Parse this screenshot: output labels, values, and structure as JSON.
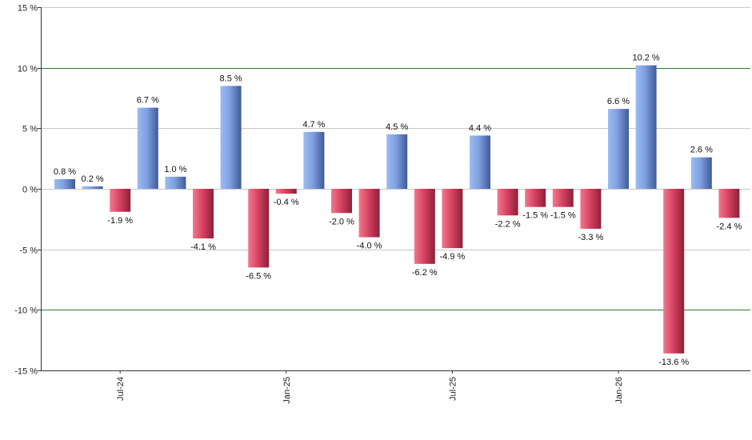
{
  "chart_data": {
    "type": "bar",
    "title": "",
    "xlabel": "",
    "ylabel": "",
    "ylim": [
      -15,
      15
    ],
    "yticks": [
      -15,
      -10,
      -5,
      0,
      5,
      10,
      15
    ],
    "ytick_labels": [
      "-15 %",
      "-10 %",
      "-5 %",
      "0 %",
      "5 %",
      "10 %",
      "15 %"
    ],
    "highlight_lines": [
      10,
      -10
    ],
    "grid": true,
    "legend": "none",
    "colors": {
      "positive": "#6f93d8",
      "negative": "#d23a5a",
      "highlight": "#2e7d32",
      "grid": "#c8c8c8"
    },
    "x_tick_labels": [
      {
        "label": "Jul-24",
        "index": 2
      },
      {
        "label": "Jan-25",
        "index": 8
      },
      {
        "label": "Jul-25",
        "index": 14
      },
      {
        "label": "Jan-26",
        "index": 20
      }
    ],
    "values": [
      0.8,
      0.2,
      -1.9,
      6.7,
      1.0,
      -4.1,
      8.5,
      -6.5,
      -0.4,
      4.7,
      -2.0,
      -4.0,
      4.5,
      -6.2,
      -4.9,
      4.4,
      -2.2,
      -1.5,
      -1.5,
      -3.3,
      6.6,
      10.2,
      -13.6,
      2.6,
      -2.4
    ],
    "data_labels": [
      "0.8 %",
      "0.2 %",
      "-1.9 %",
      "6.7 %",
      "1.0 %",
      "-4.1 %",
      "8.5 %",
      "-6.5 %",
      "-0.4 %",
      "4.7 %",
      "-2.0 %",
      "-4.0 %",
      "4.5 %",
      "-6.2 %",
      "-4.9 %",
      "4.4 %",
      "-2.2 %",
      "-1.5 %",
      "-1.5 %",
      "-3.3 %",
      "6.6 %",
      "10.2 %",
      "-13.6 %",
      "2.6 %",
      "-2.4 %"
    ]
  }
}
